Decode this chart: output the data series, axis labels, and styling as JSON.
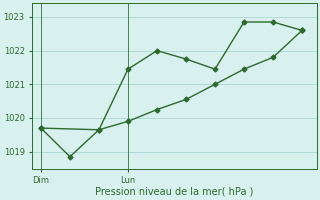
{
  "line1_x": [
    0,
    1,
    2,
    3,
    4,
    5,
    6,
    7,
    8,
    9
  ],
  "line1_y": [
    1019.7,
    1018.85,
    1019.65,
    1021.45,
    1022.0,
    1021.75,
    1021.45,
    1022.85,
    1022.85,
    1022.6
  ],
  "line2_x": [
    0,
    2,
    3,
    4,
    5,
    6,
    7,
    8,
    9
  ],
  "line2_y": [
    1019.7,
    1019.65,
    1019.9,
    1020.25,
    1020.55,
    1021.0,
    1021.45,
    1021.8,
    1022.6
  ],
  "line_color": "#2d6a2d",
  "bg_color": "#d8f0ee",
  "grid_color": "#aad8d4",
  "axis_color": "#2d6a2d",
  "xlabel": "Pression niveau de la mer( hPa )",
  "yticks": [
    1019,
    1020,
    1021,
    1022,
    1023
  ],
  "dim_x": 0,
  "lun_x": 3,
  "ylim": [
    1018.5,
    1023.4
  ],
  "xlim": [
    -0.3,
    9.5
  ]
}
